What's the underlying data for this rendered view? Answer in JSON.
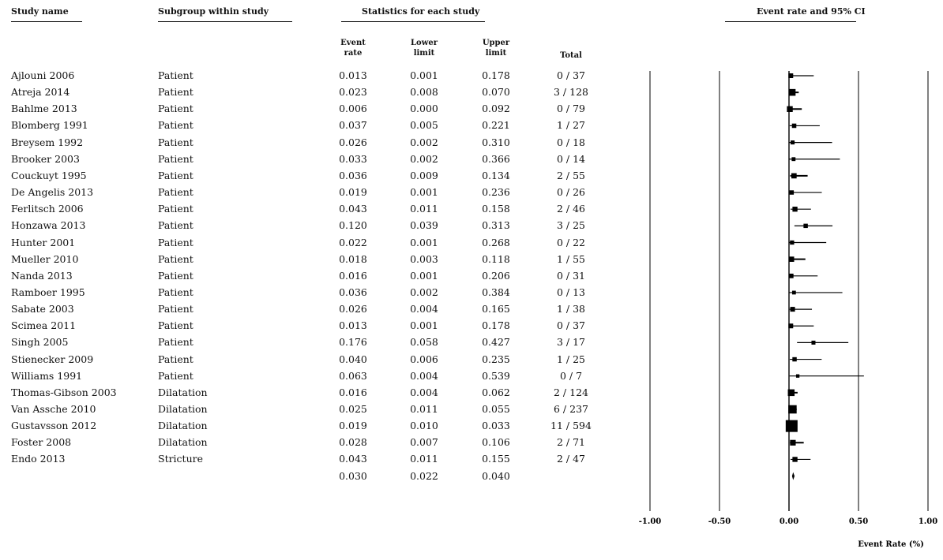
{
  "headers": {
    "study_name": "Study name",
    "subgroup": "Subgroup within study",
    "statistics": "Statistics for each study",
    "forest": "Event rate and 95% CI"
  },
  "columns": {
    "event_rate": [
      "Event",
      "rate"
    ],
    "lower": [
      "Lower",
      "limit"
    ],
    "upper": [
      "Upper",
      "limit"
    ],
    "total": "Total"
  },
  "rows": [
    {
      "study": "Ajlouni 2006",
      "subgroup": "Patient",
      "rate": "0.013",
      "lower": "0.001",
      "upper": "0.178",
      "total": "0 / 37",
      "n": 37
    },
    {
      "study": "Atreja 2014",
      "subgroup": "Patient",
      "rate": "0.023",
      "lower": "0.008",
      "upper": "0.070",
      "total": "3 / 128",
      "n": 128
    },
    {
      "study": "Bahlme 2013",
      "subgroup": "Patient",
      "rate": "0.006",
      "lower": "0.000",
      "upper": "0.092",
      "total": "0 / 79",
      "n": 79
    },
    {
      "study": "Blomberg 1991",
      "subgroup": "Patient",
      "rate": "0.037",
      "lower": "0.005",
      "upper": "0.221",
      "total": "1 / 27",
      "n": 27
    },
    {
      "study": "Breysem 1992",
      "subgroup": "Patient",
      "rate": "0.026",
      "lower": "0.002",
      "upper": "0.310",
      "total": "0 / 18",
      "n": 18
    },
    {
      "study": "Brooker 2003",
      "subgroup": "Patient",
      "rate": "0.033",
      "lower": "0.002",
      "upper": "0.366",
      "total": "0 / 14",
      "n": 14
    },
    {
      "study": "Couckuyt 1995",
      "subgroup": "Patient",
      "rate": "0.036",
      "lower": "0.009",
      "upper": "0.134",
      "total": "2 / 55",
      "n": 55
    },
    {
      "study": "De Angelis 2013",
      "subgroup": "Patient",
      "rate": "0.019",
      "lower": "0.001",
      "upper": "0.236",
      "total": "0 / 26",
      "n": 26
    },
    {
      "study": "Ferlitsch 2006",
      "subgroup": "Patient",
      "rate": "0.043",
      "lower": "0.011",
      "upper": "0.158",
      "total": "2 / 46",
      "n": 46
    },
    {
      "study": "Honzawa 2013",
      "subgroup": "Patient",
      "rate": "0.120",
      "lower": "0.039",
      "upper": "0.313",
      "total": "3 / 25",
      "n": 25
    },
    {
      "study": "Hunter 2001",
      "subgroup": "Patient",
      "rate": "0.022",
      "lower": "0.001",
      "upper": "0.268",
      "total": "0 / 22",
      "n": 22
    },
    {
      "study": "Mueller 2010",
      "subgroup": "Patient",
      "rate": "0.018",
      "lower": "0.003",
      "upper": "0.118",
      "total": "1 / 55",
      "n": 55
    },
    {
      "study": "Nanda 2013",
      "subgroup": "Patient",
      "rate": "0.016",
      "lower": "0.001",
      "upper": "0.206",
      "total": "0 / 31",
      "n": 31
    },
    {
      "study": "Ramboer 1995",
      "subgroup": "Patient",
      "rate": "0.036",
      "lower": "0.002",
      "upper": "0.384",
      "total": "0 / 13",
      "n": 13
    },
    {
      "study": "Sabate 2003",
      "subgroup": "Patient",
      "rate": "0.026",
      "lower": "0.004",
      "upper": "0.165",
      "total": "1 / 38",
      "n": 38
    },
    {
      "study": "Scimea 2011",
      "subgroup": "Patient",
      "rate": "0.013",
      "lower": "0.001",
      "upper": "0.178",
      "total": "0 / 37",
      "n": 37
    },
    {
      "study": "Singh 2005",
      "subgroup": "Patient",
      "rate": "0.176",
      "lower": "0.058",
      "upper": "0.427",
      "total": "3 / 17",
      "n": 17
    },
    {
      "study": "Stienecker 2009",
      "subgroup": "Patient",
      "rate": "0.040",
      "lower": "0.006",
      "upper": "0.235",
      "total": "1 / 25",
      "n": 25
    },
    {
      "study": "Williams 1991",
      "subgroup": "Patient",
      "rate": "0.063",
      "lower": "0.004",
      "upper": "0.539",
      "total": "0 / 7",
      "n": 7
    },
    {
      "study": "Thomas-Gibson 2003",
      "subgroup": "Dilatation",
      "rate": "0.016",
      "lower": "0.004",
      "upper": "0.062",
      "total": "2 / 124",
      "n": 124
    },
    {
      "study": "Van Assche 2010",
      "subgroup": "Dilatation",
      "rate": "0.025",
      "lower": "0.011",
      "upper": "0.055",
      "total": "6 / 237",
      "n": 237
    },
    {
      "study": "Gustavsson 2012",
      "subgroup": "Dilatation",
      "rate": "0.019",
      "lower": "0.010",
      "upper": "0.033",
      "total": "11 / 594",
      "n": 594
    },
    {
      "study": "Foster 2008",
      "subgroup": "Dilatation",
      "rate": "0.028",
      "lower": "0.007",
      "upper": "0.106",
      "total": "2 / 71",
      "n": 71
    },
    {
      "study": "Endo 2013",
      "subgroup": "Stricture",
      "rate": "0.043",
      "lower": "0.011",
      "upper": "0.155",
      "total": "2 / 47",
      "n": 47
    }
  ],
  "summary": {
    "rate": "0.030",
    "lower": "0.022",
    "upper": "0.040"
  },
  "chart_data": {
    "type": "forest",
    "title": "Event rate and 95% CI",
    "xlabel": "Event Rate (%)",
    "xlim": [
      -1.0,
      1.0
    ],
    "xticks": [
      "-1.00",
      "-0.50",
      "0.00",
      "0.50",
      "1.00"
    ],
    "xtick_values": [
      -1.0,
      -0.5,
      0.0,
      0.5,
      1.0
    ],
    "grid": "vertical lines at ticks",
    "series": [
      {
        "study": "Ajlouni 2006",
        "rate": 0.013,
        "lower": 0.001,
        "upper": 0.178
      },
      {
        "study": "Atreja 2014",
        "rate": 0.023,
        "lower": 0.008,
        "upper": 0.07
      },
      {
        "study": "Bahlme 2013",
        "rate": 0.006,
        "lower": 0.0,
        "upper": 0.092
      },
      {
        "study": "Blomberg 1991",
        "rate": 0.037,
        "lower": 0.005,
        "upper": 0.221
      },
      {
        "study": "Breysem 1992",
        "rate": 0.026,
        "lower": 0.002,
        "upper": 0.31
      },
      {
        "study": "Brooker 2003",
        "rate": 0.033,
        "lower": 0.002,
        "upper": 0.366
      },
      {
        "study": "Couckuyt 1995",
        "rate": 0.036,
        "lower": 0.009,
        "upper": 0.134
      },
      {
        "study": "De Angelis 2013",
        "rate": 0.019,
        "lower": 0.001,
        "upper": 0.236
      },
      {
        "study": "Ferlitsch 2006",
        "rate": 0.043,
        "lower": 0.011,
        "upper": 0.158
      },
      {
        "study": "Honzawa 2013",
        "rate": 0.12,
        "lower": 0.039,
        "upper": 0.313
      },
      {
        "study": "Hunter 2001",
        "rate": 0.022,
        "lower": 0.001,
        "upper": 0.268
      },
      {
        "study": "Mueller 2010",
        "rate": 0.018,
        "lower": 0.003,
        "upper": 0.118
      },
      {
        "study": "Nanda 2013",
        "rate": 0.016,
        "lower": 0.001,
        "upper": 0.206
      },
      {
        "study": "Ramboer 1995",
        "rate": 0.036,
        "lower": 0.002,
        "upper": 0.384
      },
      {
        "study": "Sabate 2003",
        "rate": 0.026,
        "lower": 0.004,
        "upper": 0.165
      },
      {
        "study": "Scimea 2011",
        "rate": 0.013,
        "lower": 0.001,
        "upper": 0.178
      },
      {
        "study": "Singh 2005",
        "rate": 0.176,
        "lower": 0.058,
        "upper": 0.427
      },
      {
        "study": "Stienecker 2009",
        "rate": 0.04,
        "lower": 0.006,
        "upper": 0.235
      },
      {
        "study": "Williams 1991",
        "rate": 0.063,
        "lower": 0.004,
        "upper": 0.539
      },
      {
        "study": "Thomas-Gibson 2003",
        "rate": 0.016,
        "lower": 0.004,
        "upper": 0.062
      },
      {
        "study": "Van Assche 2010",
        "rate": 0.025,
        "lower": 0.011,
        "upper": 0.055
      },
      {
        "study": "Gustavsson 2012",
        "rate": 0.019,
        "lower": 0.01,
        "upper": 0.033
      },
      {
        "study": "Foster 2008",
        "rate": 0.028,
        "lower": 0.007,
        "upper": 0.106
      },
      {
        "study": "Endo 2013",
        "rate": 0.043,
        "lower": 0.011,
        "upper": 0.155
      }
    ],
    "summary": {
      "rate": 0.03,
      "lower": 0.022,
      "upper": 0.04
    }
  }
}
